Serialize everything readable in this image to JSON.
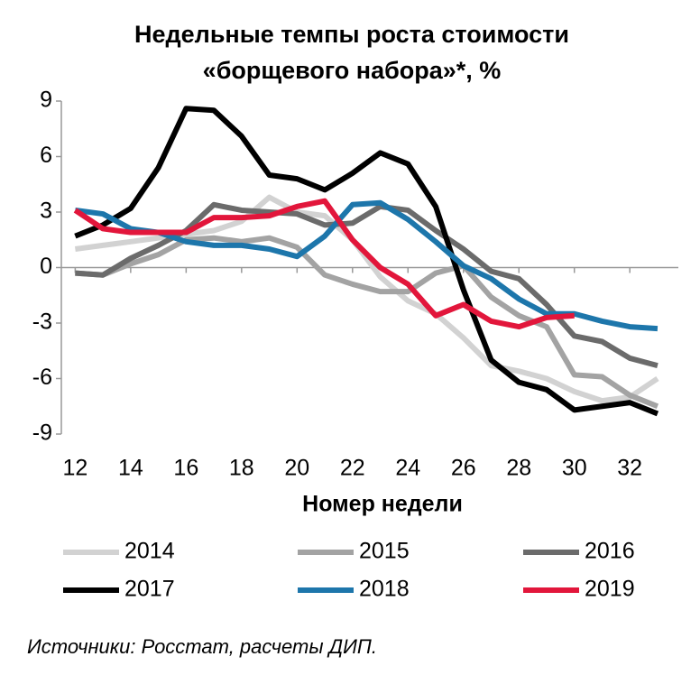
{
  "chart_data": {
    "type": "line",
    "title": [
      "Недельные темпы роста стоимости",
      "«борщевого набора»*, %"
    ],
    "x_label": "Номер недели",
    "source": "Источники: Росстат, расчеты ДИП.",
    "x": [
      12,
      13,
      14,
      15,
      16,
      17,
      18,
      19,
      20,
      21,
      22,
      23,
      24,
      25,
      26,
      27,
      28,
      29,
      30,
      31,
      32,
      33
    ],
    "xlim": [
      11.5,
      33.75
    ],
    "xticks": [
      12,
      14,
      16,
      18,
      20,
      22,
      24,
      26,
      28,
      30,
      32
    ],
    "ylim": [
      -9,
      9
    ],
    "yticks": [
      9,
      6,
      3,
      0,
      -3,
      -6,
      -9
    ],
    "grid": false,
    "legend": "bottom",
    "series": [
      {
        "name": "2014",
        "color": "#d2d2d2",
        "values": [
          1.0,
          1.2,
          1.4,
          1.6,
          1.8,
          2.0,
          2.5,
          3.8,
          3.0,
          2.8,
          1.5,
          -0.5,
          -1.8,
          -2.5,
          -3.8,
          -5.3,
          -5.6,
          -6.0,
          -6.7,
          -7.2,
          -7.0,
          -6.0
        ]
      },
      {
        "name": "2015",
        "color": "#a3a3a3",
        "values": [
          -0.3,
          -0.4,
          0.2,
          0.7,
          1.5,
          1.6,
          1.4,
          1.6,
          1.1,
          -0.4,
          -0.9,
          -1.3,
          -1.3,
          -0.3,
          0.1,
          -1.6,
          -2.6,
          -3.2,
          -5.8,
          -5.9,
          -6.9,
          -7.5
        ]
      },
      {
        "name": "2016",
        "color": "#6b6b6b",
        "values": [
          -0.3,
          -0.4,
          0.5,
          1.2,
          2.0,
          3.4,
          3.1,
          3.0,
          2.9,
          2.3,
          2.4,
          3.3,
          3.1,
          2.0,
          1.0,
          -0.2,
          -0.6,
          -2.0,
          -3.7,
          -4.0,
          -4.9,
          -5.3
        ]
      },
      {
        "name": "2017",
        "color": "#000000",
        "values": [
          1.7,
          2.3,
          3.2,
          5.4,
          8.6,
          8.5,
          7.1,
          5.0,
          4.8,
          4.2,
          5.1,
          6.2,
          5.6,
          3.3,
          -1.2,
          -5.0,
          -6.2,
          -6.6,
          -7.7,
          -7.5,
          -7.3,
          -7.9
        ]
      },
      {
        "name": "2018",
        "color": "#1d76ab",
        "values": [
          3.1,
          2.9,
          2.1,
          1.9,
          1.4,
          1.2,
          1.2,
          1.0,
          0.6,
          1.7,
          3.4,
          3.5,
          2.6,
          1.4,
          0.1,
          -0.6,
          -1.7,
          -2.5,
          -2.5,
          -2.9,
          -3.2,
          -3.3
        ]
      },
      {
        "name": "2019",
        "color": "#e2163b",
        "values": [
          3.1,
          2.1,
          1.9,
          1.9,
          1.9,
          2.7,
          2.7,
          2.8,
          3.3,
          3.6,
          1.5,
          0.0,
          -0.9,
          -2.6,
          -2.0,
          -2.9,
          -3.2,
          -2.7,
          -2.6,
          null,
          null,
          null
        ]
      }
    ]
  }
}
